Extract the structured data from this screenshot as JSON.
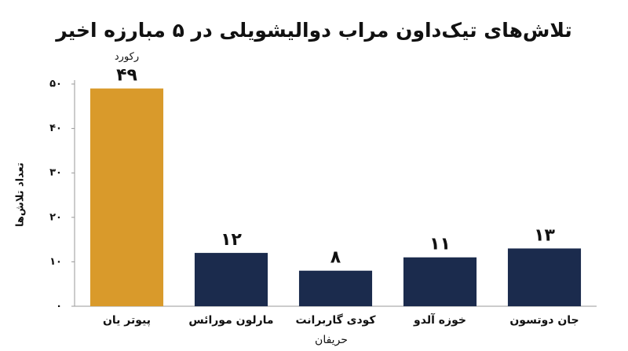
{
  "chart_data": {
    "type": "bar",
    "title": "تلاش‌های تیک‌داون مراب دوالیشویلی در ۵ مبارزه اخیر",
    "x_label": "حریفان",
    "y_label": "تعداد تلاش‌ها",
    "categories": [
      "پیوتر یان",
      "مارلون مورائس",
      "کودی گاربرانت",
      "خوزه آلدو",
      "جان دوتسون"
    ],
    "values": [
      49,
      12,
      8,
      11,
      13
    ],
    "value_labels": [
      "۴۹",
      "۱۲",
      "۸",
      "۱۱",
      "۱۳"
    ],
    "colors": [
      "#d99a2b",
      "#1b2b4d",
      "#1b2b4d",
      "#1b2b4d",
      "#1b2b4d"
    ],
    "annotations": [
      {
        "text": "رکورد",
        "category": "پیوتر یان"
      }
    ],
    "ylim": [
      0,
      50
    ],
    "yticks": [
      {
        "value": 0,
        "label": "۰"
      },
      {
        "value": 10,
        "label": "۱۰"
      },
      {
        "value": 20,
        "label": "۲۰"
      },
      {
        "value": 30,
        "label": "۳۰"
      },
      {
        "value": 40,
        "label": "۴۰"
      },
      {
        "value": 50,
        "label": "۵۰"
      }
    ],
    "grid": false
  }
}
